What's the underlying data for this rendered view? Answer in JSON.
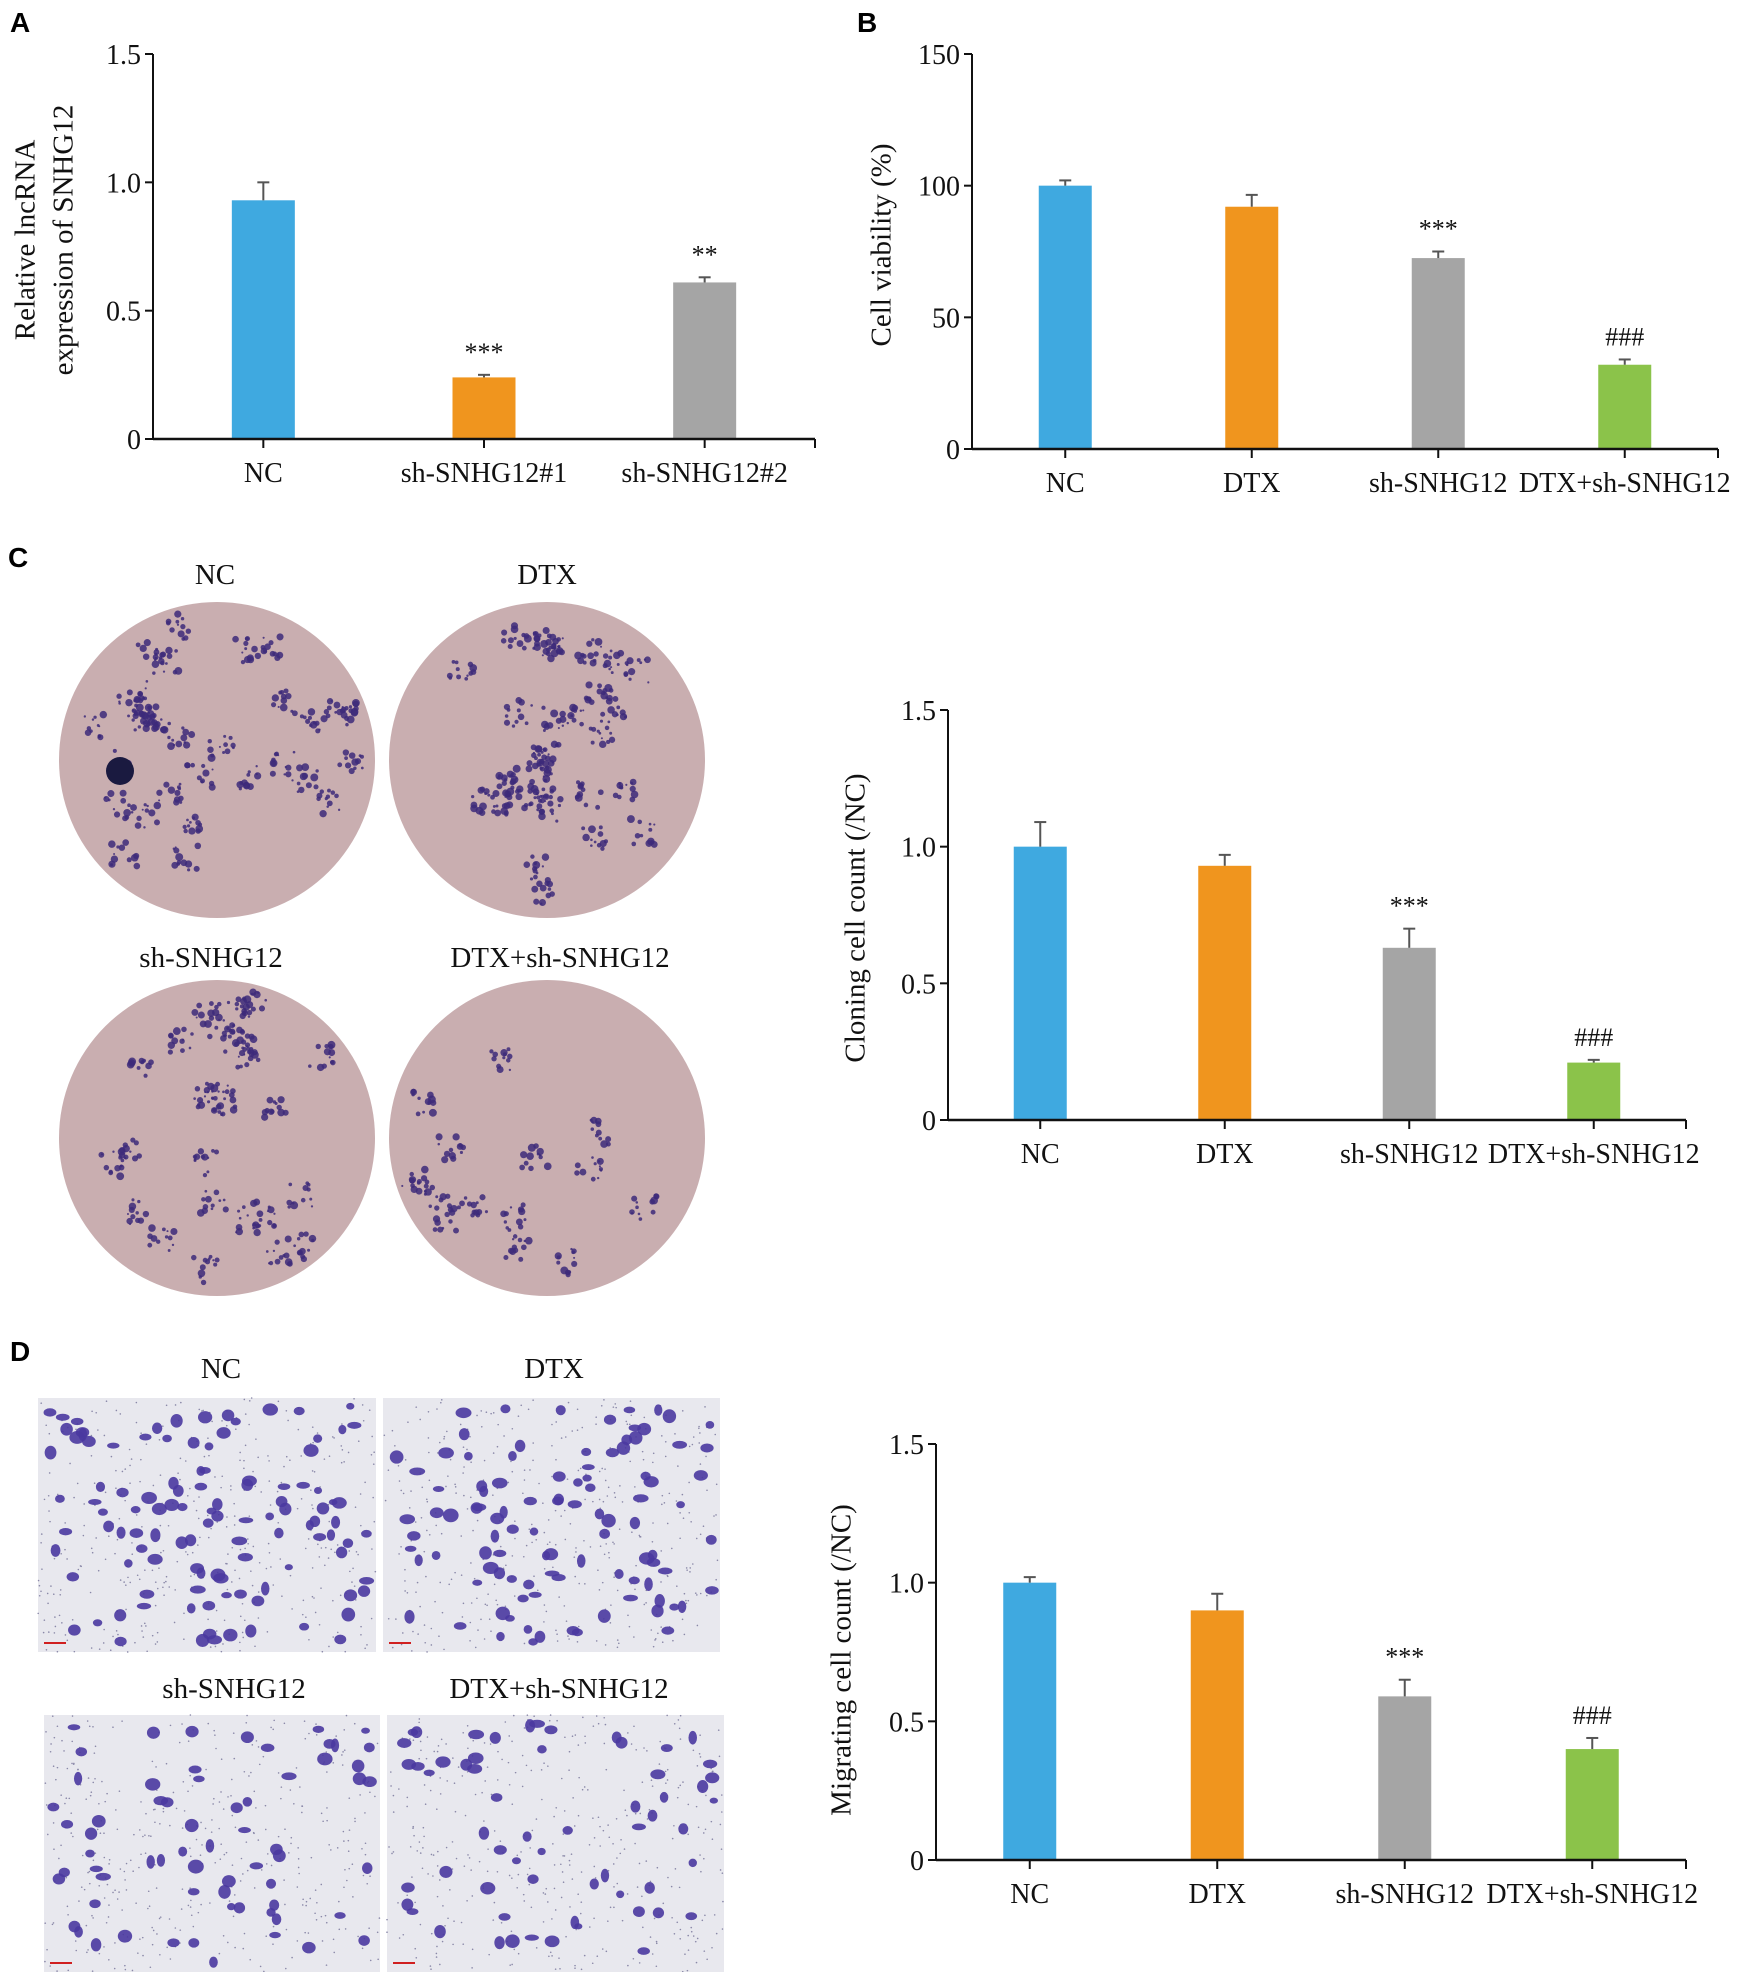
{
  "panel_letters": [
    "A",
    "B",
    "C",
    "D"
  ],
  "images": {
    "colony_labels": [
      "NC",
      "DTX",
      "sh-SNHG12",
      "DTX+sh-SNHG12"
    ],
    "transwell_labels": [
      "NC",
      "DTX",
      "sh-SNHG12",
      "DTX+sh-SNHG12"
    ],
    "dish_color": "#c9aeb0",
    "stain_color": "#3d2a7a"
  },
  "chart_data": [
    {
      "type": "bar",
      "title": "",
      "xlabel": "",
      "ylabel_lines": [
        "Relative lncRNA",
        "expression of SNHG12"
      ],
      "categories": [
        "NC",
        "sh-SNHG12#1",
        "sh-SNHG12#2"
      ],
      "values": [
        0.93,
        0.24,
        0.61
      ],
      "errors": [
        0.07,
        0.01,
        0.02
      ],
      "annotations": [
        "",
        "***",
        "**"
      ],
      "colors": [
        "#3fa9e0",
        "#f0951e",
        "#a5a5a5"
      ],
      "ylim": [
        0,
        1.5
      ],
      "yticks": [
        0,
        0.5,
        1.0,
        1.5
      ],
      "ytick_labels": [
        "0",
        "0.5",
        "1.0",
        "1.5"
      ],
      "grid": false
    },
    {
      "type": "bar",
      "title": "",
      "xlabel": "",
      "ylabel_lines": [
        "Cell viability (%)"
      ],
      "categories": [
        "NC",
        "DTX",
        "sh-SNHG12",
        "DTX+sh-SNHG12"
      ],
      "values": [
        100,
        92,
        72.5,
        32
      ],
      "errors": [
        2,
        4.5,
        2.5,
        2
      ],
      "annotations": [
        "",
        "",
        "***",
        "###"
      ],
      "colors": [
        "#3fa9e0",
        "#f0951e",
        "#a5a5a5",
        "#8bc34a"
      ],
      "ylim": [
        0,
        150
      ],
      "yticks": [
        0,
        50,
        100,
        150
      ],
      "ytick_labels": [
        "0",
        "50",
        "100",
        "150"
      ],
      "grid": false
    },
    {
      "type": "bar",
      "title": "",
      "xlabel": "",
      "ylabel_lines": [
        "Cloning cell count (/NC)"
      ],
      "categories": [
        "NC",
        "DTX",
        "sh-SNHG12",
        "DTX+sh-SNHG12"
      ],
      "values": [
        1.0,
        0.93,
        0.63,
        0.21
      ],
      "errors": [
        0.09,
        0.04,
        0.07,
        0.01
      ],
      "annotations": [
        "",
        "",
        "***",
        "###"
      ],
      "colors": [
        "#3fa9e0",
        "#f0951e",
        "#a5a5a5",
        "#8bc34a"
      ],
      "ylim": [
        0,
        1.5
      ],
      "yticks": [
        0,
        0.5,
        1.0,
        1.5
      ],
      "ytick_labels": [
        "0",
        "0.5",
        "1.0",
        "1.5"
      ],
      "grid": false
    },
    {
      "type": "bar",
      "title": "",
      "xlabel": "",
      "ylabel_lines": [
        "Migrating cell count (/NC)"
      ],
      "categories": [
        "NC",
        "DTX",
        "sh-SNHG12",
        "DTX+sh-SNHG12"
      ],
      "values": [
        1.0,
        0.9,
        0.59,
        0.4
      ],
      "errors": [
        0.02,
        0.06,
        0.06,
        0.04
      ],
      "annotations": [
        "",
        "",
        "***",
        "###"
      ],
      "colors": [
        "#3fa9e0",
        "#f0951e",
        "#a5a5a5",
        "#8bc34a"
      ],
      "ylim": [
        0,
        1.5
      ],
      "yticks": [
        0,
        0.5,
        1.0,
        1.5
      ],
      "ytick_labels": [
        "0",
        "0.5",
        "1.0",
        "1.5"
      ],
      "grid": false
    }
  ]
}
